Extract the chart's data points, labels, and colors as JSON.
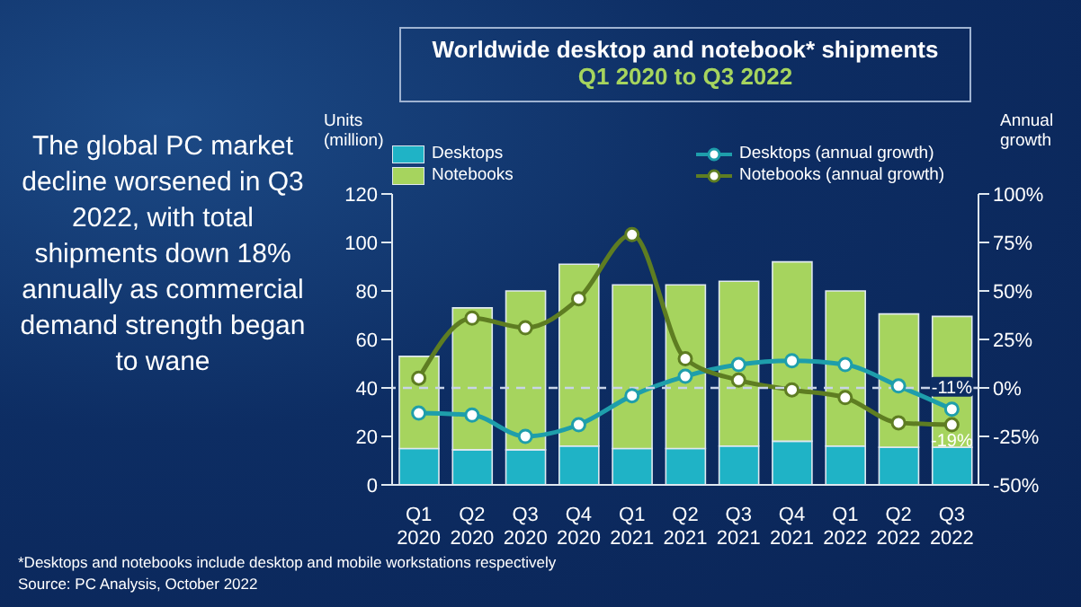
{
  "chart_data": {
    "type": "bar",
    "title": "Worldwide desktop and notebook* shipments",
    "subtitle": "Q1 2020 to Q3 2022",
    "ylabel": "Units (million)",
    "y2label": "Annual growth",
    "categories": [
      "Q1 2020",
      "Q2 2020",
      "Q3 2020",
      "Q4 2020",
      "Q1 2021",
      "Q2 2021",
      "Q3 2021",
      "Q4 2021",
      "Q1 2022",
      "Q2 2022",
      "Q3 2022"
    ],
    "stacked": true,
    "series": [
      {
        "name": "Desktops",
        "color": "#1fb3c6",
        "values": [
          15,
          14.5,
          14.5,
          16,
          15,
          15,
          16,
          18,
          16,
          15.5,
          15.5
        ]
      },
      {
        "name": "Notebooks",
        "color": "#a6d45e",
        "values": [
          38,
          58.5,
          65.5,
          75,
          67.5,
          67.5,
          68,
          74,
          64,
          55,
          54
        ]
      },
      {
        "name": "Desktops (annual growth)",
        "type": "line",
        "axis": "y2",
        "color": "#1e9eab",
        "values": [
          -13,
          -14,
          -25,
          -19,
          -4,
          6,
          12,
          14,
          12,
          1,
          -11
        ],
        "value_labels": [
          null,
          null,
          null,
          null,
          null,
          null,
          null,
          null,
          null,
          null,
          "-11%"
        ]
      },
      {
        "name": "Notebooks (annual growth)",
        "type": "line",
        "axis": "y2",
        "color": "#5e7d22",
        "values": [
          5,
          36,
          31,
          46,
          79,
          15,
          4,
          -1,
          -5,
          -18,
          -19
        ],
        "value_labels": [
          null,
          null,
          null,
          null,
          null,
          null,
          null,
          null,
          null,
          null,
          "-19%"
        ]
      }
    ],
    "ylim": [
      0,
      120
    ],
    "yticks": [
      0,
      20,
      40,
      60,
      80,
      100,
      120
    ],
    "y2lim": [
      -50,
      100
    ],
    "y2ticks": [
      {
        "value": -50,
        "label": "-50%"
      },
      {
        "value": -25,
        "label": "-25%"
      },
      {
        "value": 0,
        "label": "0%"
      },
      {
        "value": 25,
        "label": "25%"
      },
      {
        "value": 50,
        "label": "50%"
      },
      {
        "value": 75,
        "label": "75%"
      },
      {
        "value": 100,
        "label": "100%"
      }
    ],
    "ref_lines": [
      {
        "axis": "y2",
        "value": 0,
        "color": "#c8d4e8",
        "line_style": "dashed"
      }
    ],
    "marker": "circle",
    "legend": "top",
    "grid": false,
    "annotations": [
      "The global PC market decline worsened in Q3 2022, with total shipments down 18% annually as commercial demand strength began to wane",
      "*Desktops and notebooks include desktop and mobile workstations respectively",
      "Source: PC Analysis, October 2022"
    ]
  }
}
